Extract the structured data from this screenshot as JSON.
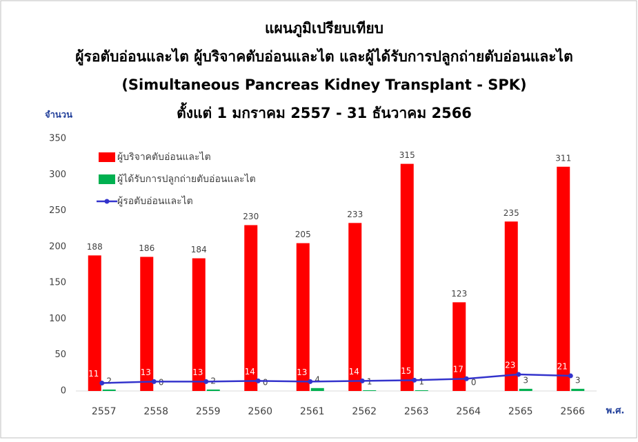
{
  "chart_data": {
    "type": "bar",
    "title": [
      "แผนภูมิเปรียบเทียบ",
      "ผู้รอตับอ่อนและไต ผู้บริจาคตับอ่อนและไต และผู้ได้รับการปลูกถ่ายตับอ่อนและไต",
      "(Simultaneous Pancreas Kidney Transplant - SPK)",
      "ตั้งแต่ 1 มกราคม 2557 - 31 ธันวาคม 2566"
    ],
    "y_label": "จำนวน",
    "x_label": "พ.ศ.",
    "categories": [
      "2557",
      "2558",
      "2559",
      "2560",
      "2561",
      "2562",
      "2563",
      "2564",
      "2565",
      "2566"
    ],
    "series": [
      {
        "name": "ผู้บริจาคตับอ่อนและไต",
        "type": "bar",
        "color": "#ff0000",
        "values": [
          188,
          186,
          184,
          230,
          205,
          233,
          315,
          123,
          235,
          311
        ]
      },
      {
        "name": "ผู้ได้รับการปลูกถ่ายตับอ่อนและไต",
        "type": "bar",
        "color": "#00b050",
        "values": [
          2,
          0,
          2,
          0,
          4,
          1,
          1,
          0,
          3,
          3
        ]
      },
      {
        "name": "ผู้รอตับอ่อนและไต",
        "type": "line",
        "color": "#3333cc",
        "values": [
          11,
          13,
          13,
          14,
          13,
          14,
          15,
          17,
          23,
          21
        ]
      }
    ],
    "ylim": [
      0,
      350
    ],
    "yticks": [
      0,
      50,
      100,
      150,
      200,
      250,
      300,
      350
    ],
    "grid": false,
    "legend": "upper left"
  }
}
